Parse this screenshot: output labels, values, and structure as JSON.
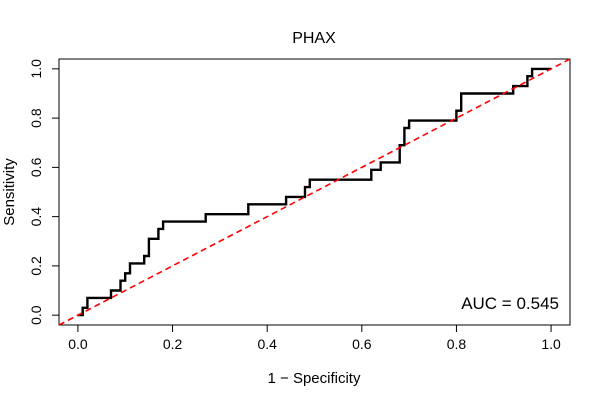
{
  "chart_data": {
    "type": "line",
    "title": "PHAX",
    "xlabel": "1 − Specificity",
    "ylabel": "Sensitivity",
    "xlim": [
      -0.04,
      1.04
    ],
    "ylim": [
      -0.04,
      1.04
    ],
    "xticks": [
      "0.0",
      "0.2",
      "0.4",
      "0.6",
      "0.8",
      "1.0"
    ],
    "yticks": [
      "0.0",
      "0.2",
      "0.4",
      "0.6",
      "0.8",
      "1.0"
    ],
    "grid": false,
    "legend": "none",
    "annotation": "AUC = 0.545",
    "series": [
      {
        "color": "#000000",
        "style": "solid",
        "x": [
          0.0,
          0.01,
          0.01,
          0.02,
          0.02,
          0.07,
          0.07,
          0.09,
          0.09,
          0.1,
          0.1,
          0.11,
          0.11,
          0.12,
          0.12,
          0.14,
          0.14,
          0.15,
          0.15,
          0.16,
          0.16,
          0.17,
          0.17,
          0.18,
          0.18,
          0.27,
          0.27,
          0.36,
          0.36,
          0.44,
          0.44,
          0.48,
          0.48,
          0.49,
          0.49,
          0.62,
          0.62,
          0.64,
          0.64,
          0.68,
          0.68,
          0.69,
          0.69,
          0.7,
          0.7,
          0.72,
          0.72,
          0.8,
          0.8,
          0.81,
          0.81,
          0.92,
          0.92,
          0.95,
          0.95,
          0.96,
          0.96,
          0.97,
          0.97,
          1.0
        ],
        "y": [
          0.0,
          0.0,
          0.03,
          0.03,
          0.07,
          0.07,
          0.1,
          0.1,
          0.14,
          0.14,
          0.17,
          0.17,
          0.21,
          0.21,
          0.21,
          0.21,
          0.24,
          0.24,
          0.31,
          0.31,
          0.31,
          0.31,
          0.35,
          0.35,
          0.38,
          0.38,
          0.41,
          0.41,
          0.45,
          0.45,
          0.48,
          0.48,
          0.52,
          0.52,
          0.55,
          0.55,
          0.59,
          0.59,
          0.62,
          0.62,
          0.69,
          0.69,
          0.76,
          0.76,
          0.79,
          0.79,
          0.79,
          0.79,
          0.83,
          0.83,
          0.9,
          0.9,
          0.93,
          0.93,
          0.97,
          0.97,
          1.0,
          1.0,
          1.0,
          1.0
        ]
      },
      {
        "color": "#ff0000",
        "style": "dashed",
        "x": [
          -0.04,
          1.04
        ],
        "y": [
          -0.04,
          1.04
        ]
      }
    ]
  }
}
